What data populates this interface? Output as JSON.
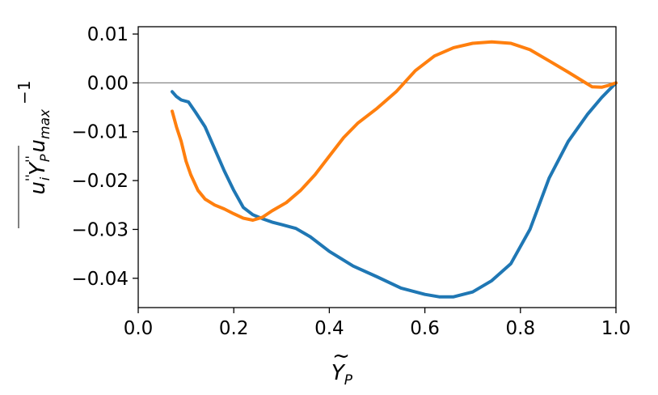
{
  "chart_data": {
    "type": "line",
    "title": "",
    "xlabel": {
      "base": "Y",
      "sub": "P"
    },
    "ylabel": {
      "base": "u",
      "sup1": "''",
      "sub1": "i",
      "mid": "Y",
      "sup2": "''",
      "sub2": "P",
      "base2": "u",
      "sub3": "max",
      "sup3": "−1"
    },
    "xlim": [
      0.0,
      1.0
    ],
    "ylim": [
      -0.046,
      0.0115
    ],
    "xticks": [
      0.0,
      0.2,
      0.4,
      0.6,
      0.8,
      1.0
    ],
    "xtick_labels": [
      "0.0",
      "0.2",
      "0.4",
      "0.6",
      "0.8",
      "1.0"
    ],
    "yticks": [
      0.01,
      0.0,
      -0.01,
      -0.02,
      -0.03,
      -0.04
    ],
    "ytick_labels": [
      "0.01",
      "0.00",
      "−0.01",
      "−0.02",
      "−0.03",
      "−0.04"
    ],
    "zero_line": true,
    "grid": false,
    "series": [
      {
        "color": "#1f77b4",
        "points": [
          [
            0.071,
            -0.0018
          ],
          [
            0.08,
            -0.0028
          ],
          [
            0.09,
            -0.0035
          ],
          [
            0.105,
            -0.0039
          ],
          [
            0.12,
            -0.006
          ],
          [
            0.14,
            -0.009
          ],
          [
            0.16,
            -0.0135
          ],
          [
            0.18,
            -0.018
          ],
          [
            0.2,
            -0.022
          ],
          [
            0.22,
            -0.0255
          ],
          [
            0.24,
            -0.027
          ],
          [
            0.26,
            -0.0278
          ],
          [
            0.28,
            -0.0285
          ],
          [
            0.3,
            -0.029
          ],
          [
            0.33,
            -0.0298
          ],
          [
            0.36,
            -0.0315
          ],
          [
            0.4,
            -0.0345
          ],
          [
            0.45,
            -0.0375
          ],
          [
            0.5,
            -0.0397
          ],
          [
            0.55,
            -0.042
          ],
          [
            0.6,
            -0.0433
          ],
          [
            0.63,
            -0.0438
          ],
          [
            0.66,
            -0.0438
          ],
          [
            0.7,
            -0.0428
          ],
          [
            0.74,
            -0.0405
          ],
          [
            0.78,
            -0.037
          ],
          [
            0.82,
            -0.03
          ],
          [
            0.86,
            -0.0195
          ],
          [
            0.9,
            -0.012
          ],
          [
            0.94,
            -0.0065
          ],
          [
            0.97,
            -0.003
          ],
          [
            1.0,
            0.0
          ]
        ]
      },
      {
        "color": "#ff7f0e",
        "points": [
          [
            0.071,
            -0.0058
          ],
          [
            0.08,
            -0.009
          ],
          [
            0.09,
            -0.012
          ],
          [
            0.1,
            -0.016
          ],
          [
            0.11,
            -0.0188
          ],
          [
            0.125,
            -0.022
          ],
          [
            0.14,
            -0.0238
          ],
          [
            0.16,
            -0.025
          ],
          [
            0.18,
            -0.0258
          ],
          [
            0.2,
            -0.0268
          ],
          [
            0.22,
            -0.0277
          ],
          [
            0.24,
            -0.0281
          ],
          [
            0.26,
            -0.0275
          ],
          [
            0.28,
            -0.0262
          ],
          [
            0.31,
            -0.0245
          ],
          [
            0.34,
            -0.022
          ],
          [
            0.37,
            -0.0188
          ],
          [
            0.4,
            -0.015
          ],
          [
            0.43,
            -0.0112
          ],
          [
            0.46,
            -0.0082
          ],
          [
            0.5,
            -0.0052
          ],
          [
            0.54,
            -0.0018
          ],
          [
            0.58,
            0.0025
          ],
          [
            0.62,
            0.0055
          ],
          [
            0.66,
            0.0072
          ],
          [
            0.7,
            0.0081
          ],
          [
            0.74,
            0.0084
          ],
          [
            0.78,
            0.0081
          ],
          [
            0.82,
            0.0068
          ],
          [
            0.86,
            0.0045
          ],
          [
            0.9,
            0.0022
          ],
          [
            0.93,
            0.0004
          ],
          [
            0.95,
            -0.0008
          ],
          [
            0.97,
            -0.0009
          ],
          [
            0.985,
            -0.0005
          ],
          [
            1.0,
            0.0
          ]
        ]
      }
    ]
  }
}
